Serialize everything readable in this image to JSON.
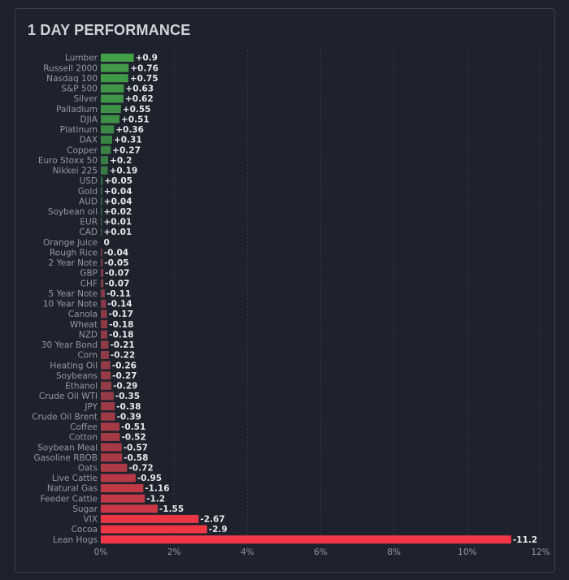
{
  "chart_data": {
    "type": "bar",
    "orientation": "horizontal",
    "title": "1 DAY PERFORMANCE",
    "xlabel": "",
    "ylabel": "",
    "xlim": [
      0,
      12
    ],
    "x_ticks": [
      "0%",
      "2%",
      "4%",
      "6%",
      "8%",
      "10%",
      "12%"
    ],
    "grid": true,
    "colors": {
      "positive_strong": "#43a047",
      "positive_weak": "#2e5e43",
      "negative_weak": "#6b3d47",
      "negative_strong": "#f23645",
      "background": "#1e222d",
      "grid": "#363a45"
    },
    "categories": [
      "Lumber",
      "Russell 2000",
      "Nasdaq 100",
      "S&P 500",
      "Silver",
      "Palladium",
      "DJIA",
      "Platinum",
      "DAX",
      "Copper",
      "Euro Stoxx 50",
      "Nikkei 225",
      "USD",
      "Gold",
      "AUD",
      "Soybean oil",
      "EUR",
      "CAD",
      "Orange Juice",
      "Rough Rice",
      "2 Year Note",
      "GBP",
      "CHF",
      "5 Year Note",
      "10 Year Note",
      "Canola",
      "Wheat",
      "NZD",
      "30 Year Bond",
      "Corn",
      "Heating Oil",
      "Soybeans",
      "Ethanol",
      "Crude Oil WTI",
      "JPY",
      "Crude Oil Brent",
      "Coffee",
      "Cotton",
      "Soybean Meal",
      "Gasoline RBOB",
      "Oats",
      "Live Cattle",
      "Natural Gas",
      "Feeder Cattle",
      "Sugar",
      "VIX",
      "Cocoa",
      "Lean Hogs"
    ],
    "values": [
      0.9,
      0.76,
      0.75,
      0.63,
      0.62,
      0.55,
      0.51,
      0.36,
      0.31,
      0.27,
      0.2,
      0.19,
      0.05,
      0.04,
      0.04,
      0.02,
      0.01,
      0.01,
      0,
      -0.04,
      -0.05,
      -0.07,
      -0.07,
      -0.11,
      -0.14,
      -0.17,
      -0.18,
      -0.18,
      -0.21,
      -0.22,
      -0.26,
      -0.27,
      -0.29,
      -0.35,
      -0.38,
      -0.39,
      -0.51,
      -0.52,
      -0.57,
      -0.58,
      -0.72,
      -0.95,
      -1.16,
      -1.2,
      -1.55,
      -2.67,
      -2.9,
      -11.2
    ],
    "value_labels": [
      "+0.9",
      "+0.76",
      "+0.75",
      "+0.63",
      "+0.62",
      "+0.55",
      "+0.51",
      "+0.36",
      "+0.31",
      "+0.27",
      "+0.2",
      "+0.19",
      "+0.05",
      "+0.04",
      "+0.04",
      "+0.02",
      "+0.01",
      "+0.01",
      "0",
      "-0.04",
      "-0.05",
      "-0.07",
      "-0.07",
      "-0.11",
      "-0.14",
      "-0.17",
      "-0.18",
      "-0.18",
      "-0.21",
      "-0.22",
      "-0.26",
      "-0.27",
      "-0.29",
      "-0.35",
      "-0.38",
      "-0.39",
      "-0.51",
      "-0.52",
      "-0.57",
      "-0.58",
      "-0.72",
      "-0.95",
      "-1.16",
      "-1.2",
      "-1.55",
      "-2.67",
      "-2.9",
      "-11.2"
    ]
  }
}
